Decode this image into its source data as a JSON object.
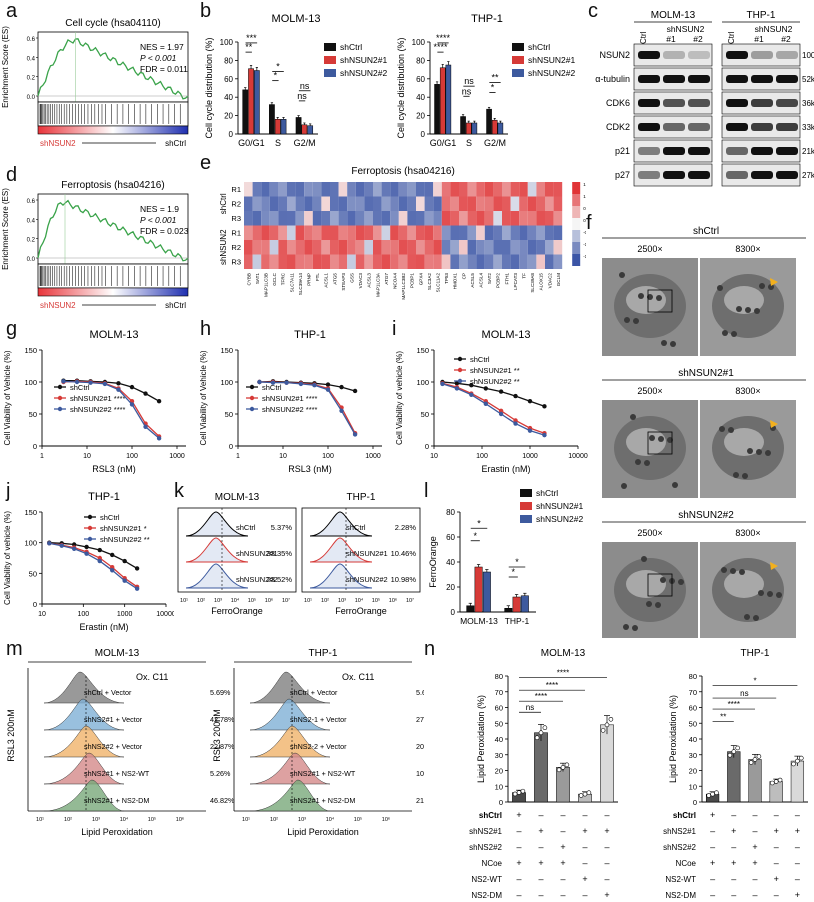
{
  "labels": {
    "a": "a",
    "b": "b",
    "c": "c",
    "d": "d",
    "e": "e",
    "f": "f",
    "g": "g",
    "h": "h",
    "i": "i",
    "j": "j",
    "k": "k",
    "l": "l",
    "m": "m",
    "n": "n"
  },
  "colors": {
    "shCtrl": "#111111",
    "sh1": "#d63a37",
    "sh2": "#3d5a9e",
    "gseaLine": "#3aa34a",
    "heatLow": "#3b55a6",
    "heatHigh": "#e03436"
  },
  "gsea": [
    {
      "title": "Cell cycle (hsa04110)",
      "ylabel": "Enrichment Score (ES)",
      "stats": [
        "NES = 1.97",
        "P < 0.001",
        "FDR = 0.011"
      ],
      "left": "shNSUN2",
      "right": "shCtrl",
      "yticks": [
        "0.6",
        "0.4",
        "0.2",
        "0.0"
      ],
      "peak": 0.25
    },
    {
      "title": "Ferroptosis (hsa04216)",
      "ylabel": "Enrichment Score (ES)",
      "stats": [
        "NES = 1.9",
        "P < 0.001",
        "FDR = 0.023"
      ],
      "left": "shNSUN2",
      "right": "shCtrl",
      "yticks": [
        "0.6",
        "0.4",
        "0.2",
        "0.0"
      ],
      "peak": 0.18
    }
  ],
  "chart_data": [
    {
      "panel": "b-MOLM-13",
      "type": "bar",
      "title": "MOLM-13",
      "ylabel": "Cell cycle distribution (%)",
      "ylim": [
        0,
        100
      ],
      "yticks": [
        "0",
        "20",
        "40",
        "60",
        "80",
        "100"
      ],
      "categories": [
        "G0/G1",
        "S",
        "G2/M"
      ],
      "series": [
        {
          "name": "shCtrl",
          "values": [
            48,
            32,
            18
          ]
        },
        {
          "name": "shNSUN2#1",
          "values": [
            71,
            16,
            10
          ]
        },
        {
          "name": "shNSUN2#2",
          "values": [
            69,
            16,
            9
          ]
        }
      ],
      "annotations": [
        "***",
        "**",
        "*",
        "*",
        "ns",
        "ns"
      ]
    },
    {
      "panel": "b-THP-1",
      "type": "bar",
      "title": "THP-1",
      "ylabel": "Cell cycle distribution (%)",
      "ylim": [
        0,
        100
      ],
      "yticks": [
        "0",
        "20",
        "40",
        "60",
        "80",
        "100"
      ],
      "categories": [
        "G0/G1",
        "S",
        "G2/M"
      ],
      "series": [
        {
          "name": "shCtrl",
          "values": [
            54,
            19,
            27
          ]
        },
        {
          "name": "shNSUN2#1",
          "values": [
            72,
            12,
            15
          ]
        },
        {
          "name": "shNSUN2#2",
          "values": [
            75,
            12,
            12
          ]
        }
      ],
      "annotations": [
        "****",
        "****",
        "ns",
        "ns",
        "**",
        "*"
      ]
    },
    {
      "panel": "g",
      "type": "line",
      "title": "MOLM-13",
      "xlabel": "RSL3 (nM)",
      "ylabel": "Cell Viability of Vehicle (%)",
      "ylim": [
        0,
        150
      ],
      "yticks": [
        "0",
        "50",
        "100",
        "150"
      ],
      "xticks": [
        "1",
        "10",
        "100",
        "1000"
      ],
      "x": [
        3,
        6,
        12,
        25,
        50,
        100,
        200,
        400
      ],
      "series": [
        {
          "name": "shCtrl",
          "values": [
            102,
            102,
            101,
            100,
            98,
            92,
            82,
            70
          ]
        },
        {
          "name": "shNSUN2#1 ****",
          "values": [
            100,
            101,
            100,
            98,
            90,
            70,
            35,
            15
          ]
        },
        {
          "name": "shNSUN2#2 ****",
          "values": [
            101,
            100,
            99,
            97,
            88,
            65,
            30,
            12
          ]
        }
      ]
    },
    {
      "panel": "h",
      "type": "line",
      "title": "THP-1",
      "xlabel": "RSL3 (nM)",
      "ylabel": "Cell Viability of Vehicle (%)",
      "ylim": [
        0,
        150
      ],
      "yticks": [
        "0",
        "50",
        "100",
        "150"
      ],
      "xticks": [
        "1",
        "10",
        "100",
        "1000"
      ],
      "x": [
        3,
        6,
        12,
        25,
        50,
        100,
        200,
        400
      ],
      "series": [
        {
          "name": "shCtrl",
          "values": [
            100,
            101,
            100,
            99,
            98,
            96,
            92,
            86
          ]
        },
        {
          "name": "shNSUN2#1 ****",
          "values": [
            100,
            100,
            99,
            98,
            96,
            90,
            60,
            20
          ]
        },
        {
          "name": "shNSUN2#2 ****",
          "values": [
            100,
            99,
            99,
            97,
            95,
            88,
            55,
            18
          ]
        }
      ]
    },
    {
      "panel": "i",
      "type": "line",
      "title": "MOLM-13",
      "xlabel": "Erastin (nM)",
      "ylabel": "Cell Viability of vehicle (%)",
      "ylim": [
        0,
        150
      ],
      "yticks": [
        "0",
        "50",
        "100",
        "150"
      ],
      "xticks": [
        "1",
        "10",
        "100",
        "1000",
        "10000"
      ],
      "x": [
        15,
        30,
        60,
        120,
        250,
        500,
        1000,
        2000
      ],
      "series": [
        {
          "name": "shCtrl",
          "values": [
            100,
            98,
            95,
            90,
            85,
            78,
            70,
            62
          ]
        },
        {
          "name": "shNSUN2#1 **",
          "values": [
            98,
            92,
            82,
            70,
            55,
            40,
            28,
            20
          ]
        },
        {
          "name": "shNSUN2#2 **",
          "values": [
            97,
            90,
            80,
            66,
            50,
            35,
            24,
            17
          ]
        }
      ]
    },
    {
      "panel": "j",
      "type": "line",
      "title": "THP-1",
      "xlabel": "Erastin (nM)",
      "ylabel": "Cell Viability of vehicle (%)",
      "ylim": [
        0,
        150
      ],
      "yticks": [
        "0",
        "50",
        "100",
        "150"
      ],
      "xticks": [
        "10",
        "100",
        "1000",
        "10000"
      ],
      "x": [
        15,
        30,
        60,
        120,
        250,
        500,
        1000,
        2000
      ],
      "series": [
        {
          "name": "shCtrl",
          "values": [
            100,
            99,
            97,
            93,
            88,
            80,
            70,
            58
          ]
        },
        {
          "name": "shNSUN2#1 *",
          "values": [
            99,
            96,
            92,
            85,
            75,
            60,
            42,
            28
          ]
        },
        {
          "name": "shNSUN2#2 **",
          "values": [
            99,
            95,
            90,
            82,
            70,
            55,
            38,
            25
          ]
        }
      ]
    },
    {
      "panel": "l",
      "type": "bar",
      "ylabel": "FerroOrange",
      "ylim": [
        0,
        80
      ],
      "yticks": [
        "0",
        "20",
        "40",
        "60",
        "80"
      ],
      "categories": [
        "MOLM-13",
        "THP-1"
      ],
      "series": [
        {
          "name": "shCtrl",
          "values": [
            5,
            3
          ]
        },
        {
          "name": "shNSUN2#1",
          "values": [
            36,
            12
          ]
        },
        {
          "name": "shNSUN2#2",
          "values": [
            32,
            13
          ]
        }
      ],
      "annotations": [
        "*",
        "*",
        "*",
        "*"
      ]
    },
    {
      "panel": "n-MOLM-13",
      "type": "bar",
      "title": "MOLM-13",
      "ylabel": "Lipid Peroxidation (%)",
      "ylim": [
        0,
        80
      ],
      "yticks": [
        "0",
        "10",
        "20",
        "30",
        "40",
        "50",
        "60",
        "70",
        "80"
      ],
      "categories": [
        "1",
        "2",
        "3",
        "4",
        "5"
      ],
      "values": [
        6,
        44,
        22,
        5,
        49
      ],
      "annotations": [
        "****",
        "****",
        "****",
        "ns",
        "****"
      ]
    },
    {
      "panel": "n-THP-1",
      "type": "bar",
      "title": "THP-1",
      "ylabel": "Lipid Peroxidation (%)",
      "ylim": [
        0,
        80
      ],
      "yticks": [
        "0",
        "10",
        "20",
        "30",
        "40",
        "50",
        "60",
        "70",
        "80"
      ],
      "categories": [
        "1",
        "2",
        "3",
        "4",
        "5"
      ],
      "values": [
        5,
        32,
        27,
        13,
        26
      ],
      "annotations": [
        "*",
        "ns",
        "****",
        "**"
      ]
    }
  ],
  "westernblot": {
    "groups": [
      "MOLM-13",
      "THP-1"
    ],
    "sublabel": "shNSUN2",
    "lanes": [
      "shCtrl",
      "#1",
      "#2"
    ],
    "proteins": [
      "NSUN2",
      "α-tubulin",
      "CDK6",
      "CDK2",
      "p21",
      "p27"
    ],
    "sizes": [
      "100kDa",
      "52kDa",
      "36kDa",
      "33kDa",
      "21kDa",
      "27kDa"
    ]
  },
  "heatmap": {
    "title": "Ferroptosis (hsa04216)",
    "groups": [
      "shCtrl",
      "shNSUN2"
    ],
    "rows": [
      "R1",
      "R2",
      "R3",
      "R1",
      "R2",
      "R3"
    ],
    "cols": [
      "CYBB",
      "SAT1",
      "MAP1LC3B",
      "GCLC",
      "TFRC",
      "SLC7A11",
      "SLC39A14",
      "PRNP",
      "FTL",
      "ACSL1",
      "ATG5",
      "STEAP3",
      "GSS",
      "VDAC3",
      "ACSL3",
      "MAP1LC3A",
      "ATG7",
      "NCOA4",
      "MAP1LC3B2",
      "PCBP1",
      "GPX4",
      "SLC3A2",
      "SLC11A2",
      "TP53",
      "HMOX1",
      "CP",
      "ACSL5",
      "ACSL4",
      "SAT2",
      "PCBP2",
      "FTH1",
      "LPCAT3",
      "TF",
      "SLC39A8",
      "ALOX15",
      "VDAC2",
      "GCLM"
    ],
    "scale": [
      "1.5",
      "1",
      "0.5",
      "0",
      "-0.5",
      "-1",
      "-1.5"
    ]
  },
  "tem": {
    "groups": [
      "shCtrl",
      "shNSUN2#1",
      "shNSUN2#2"
    ],
    "mags": [
      "2500×",
      "8300×"
    ]
  },
  "flowK": {
    "titles": [
      "MOLM-13",
      "THP-1"
    ],
    "xlabel": "FerroOrange",
    "ticks": [
      "10¹",
      "10²",
      "10³",
      "10⁴",
      "10⁵",
      "10⁶",
      "10⁷"
    ],
    "rows": [
      {
        "name": "shCtrl",
        "left": "5.37%",
        "right": "2.28%"
      },
      {
        "name": "shNSUN2#1",
        "left": "33.35%",
        "right": "10.46%"
      },
      {
        "name": "shNSUN2#2",
        "left": "23.52%",
        "right": "10.98%"
      }
    ]
  },
  "flowM": {
    "titles": [
      "MOLM-13",
      "THP-1"
    ],
    "ylabel": "RSL3 200nM",
    "xlabel": "Lipid Peroxidation",
    "header": "Ox. C11",
    "ticks": [
      "10¹",
      "10²",
      "10³",
      "10⁴",
      "10⁵",
      "10⁶"
    ],
    "left": [
      {
        "name": "shCtrl    + Vector",
        "pct": "5.69%"
      },
      {
        "name": "shNS2#1 + Vector",
        "pct": "42.78%"
      },
      {
        "name": "shNS2#2 + Vector",
        "pct": "22.87%"
      },
      {
        "name": "shNS2#1 + NS2-WT",
        "pct": "5.26%"
      },
      {
        "name": "shNS2#1 + NS2-DM",
        "pct": "46.82%"
      }
    ],
    "right": [
      {
        "name": "shCtrl    + Vector",
        "pct": "5.63%"
      },
      {
        "name": "shNS2-1 + Vector",
        "pct": "27.62%"
      },
      {
        "name": "shNS2-2 + Vector",
        "pct": "20.53%"
      },
      {
        "name": "shNS2#1 + NS2-WT",
        "pct": "10.50%"
      },
      {
        "name": "shNS2#1 + NS2-DM",
        "pct": "21.34%"
      }
    ]
  },
  "nTable": {
    "rows": [
      "shCtrl",
      "shNS2#1",
      "shNS2#2",
      "NCoe",
      "NS2-WT",
      "NS2-DM"
    ],
    "signs": [
      [
        "+",
        "–",
        "–",
        "–",
        "–"
      ],
      [
        "–",
        "+",
        "–",
        "+",
        "+"
      ],
      [
        "–",
        "–",
        "+",
        "–",
        "–"
      ],
      [
        "+",
        "+",
        "+",
        "–",
        "–"
      ],
      [
        "–",
        "–",
        "–",
        "+",
        "–"
      ],
      [
        "–",
        "–",
        "–",
        "–",
        "+"
      ]
    ]
  }
}
